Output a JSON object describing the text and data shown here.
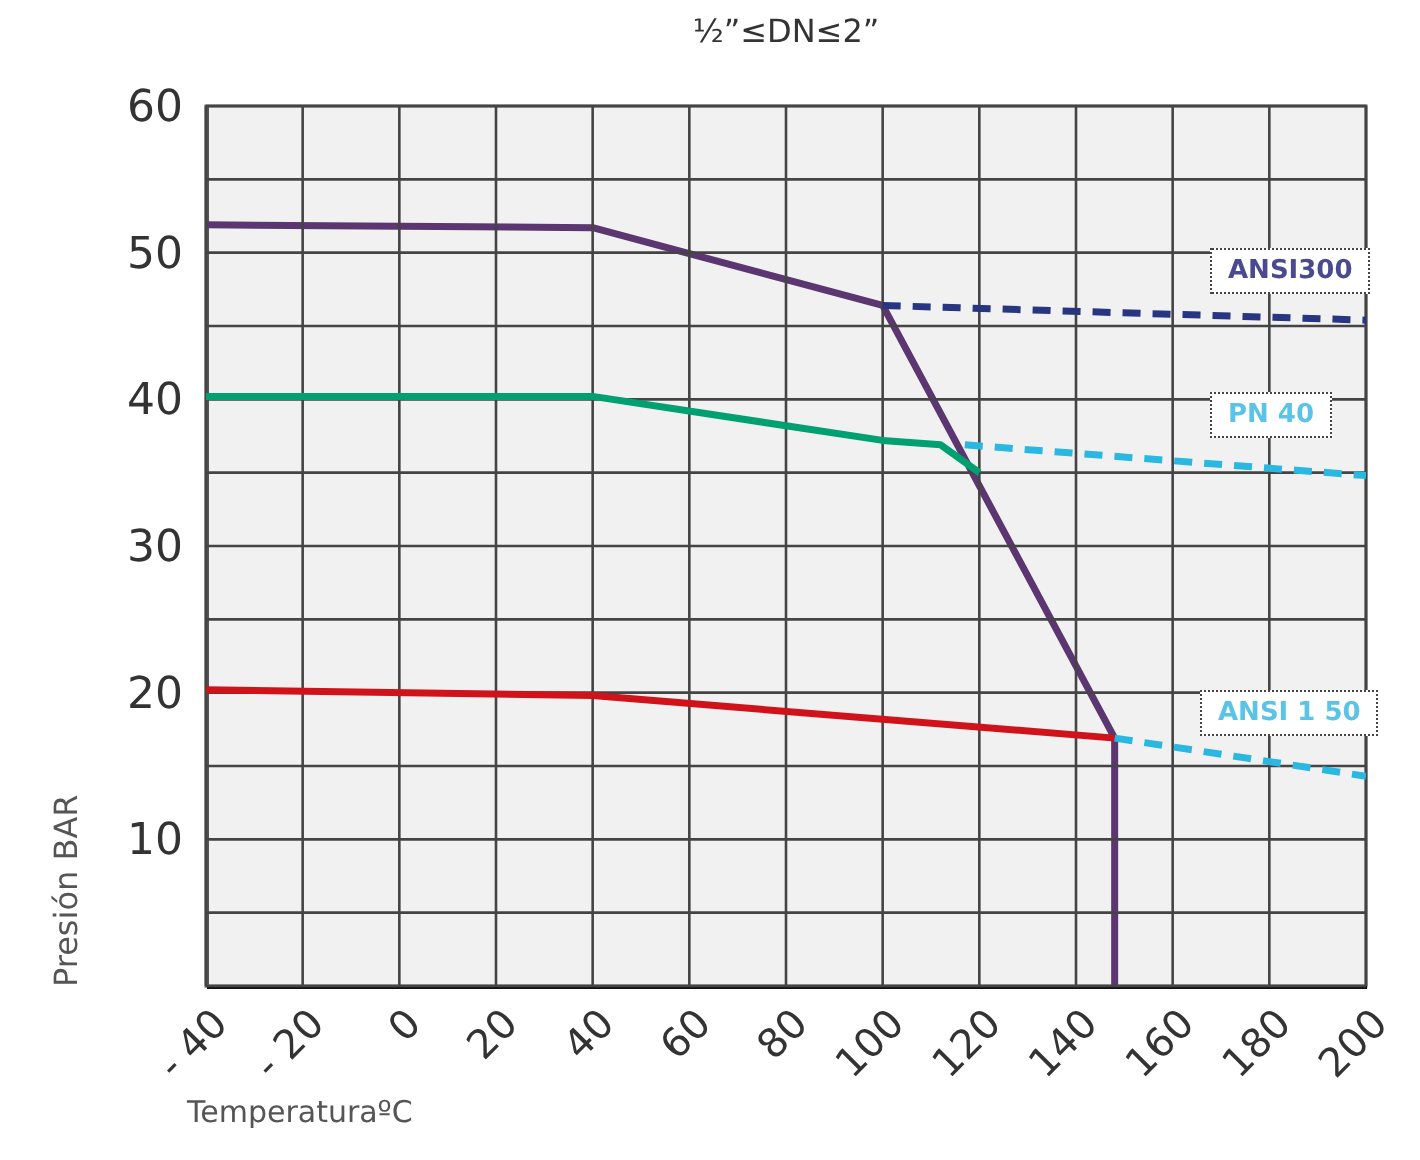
{
  "chart_data": {
    "type": "line",
    "title": "½”≤DN≤2”",
    "xlabel": "TemperaturaºC",
    "ylabel": "Presión BAR",
    "xlim": [
      -40,
      200
    ],
    "ylim": [
      0,
      60
    ],
    "xticks": [
      {
        "value": -40,
        "label": "- 40"
      },
      {
        "value": -20,
        "label": "- 20"
      },
      0,
      20,
      40,
      60,
      80,
      100,
      120,
      140,
      160,
      180,
      200
    ],
    "yticks": [
      {
        "value": 0,
        "label": null
      },
      {
        "value": 5,
        "label": null
      },
      10,
      {
        "value": 15,
        "label": null
      },
      20,
      {
        "value": 25,
        "label": null
      },
      30,
      {
        "value": 35,
        "label": null
      },
      40,
      {
        "value": 45,
        "label": null
      },
      50,
      {
        "value": 55,
        "label": null
      },
      60
    ],
    "grid": true,
    "marker": "none",
    "series": [
      {
        "color": "#5b3670",
        "x": [
          -40,
          40,
          100,
          148,
          148
        ],
        "values": [
          51.9,
          51.7,
          46.4,
          16.9,
          0
        ]
      },
      {
        "color": "#283580",
        "line_style": "dashed",
        "x": [
          100,
          200
        ],
        "values": [
          46.4,
          45.4
        ]
      },
      {
        "color": "#00a070",
        "x": [
          -40,
          40,
          100,
          112,
          120
        ],
        "values": [
          40.2,
          40.2,
          37.2,
          36.9,
          35
        ]
      },
      {
        "color": "#2ab8e0",
        "line_style": "dashed",
        "x": [
          117,
          200
        ],
        "values": [
          36.9,
          34.8
        ]
      },
      {
        "color": "#d0121b",
        "x": [
          -40,
          40,
          148
        ],
        "values": [
          20.2,
          19.8,
          16.9
        ]
      },
      {
        "color": "#2ab8e0",
        "line_style": "dashed",
        "x": [
          148,
          200
        ],
        "values": [
          16.9,
          14.3
        ]
      }
    ],
    "annotations": [
      "ANSI300",
      "PN 40",
      "ANSI 1 50"
    ]
  }
}
